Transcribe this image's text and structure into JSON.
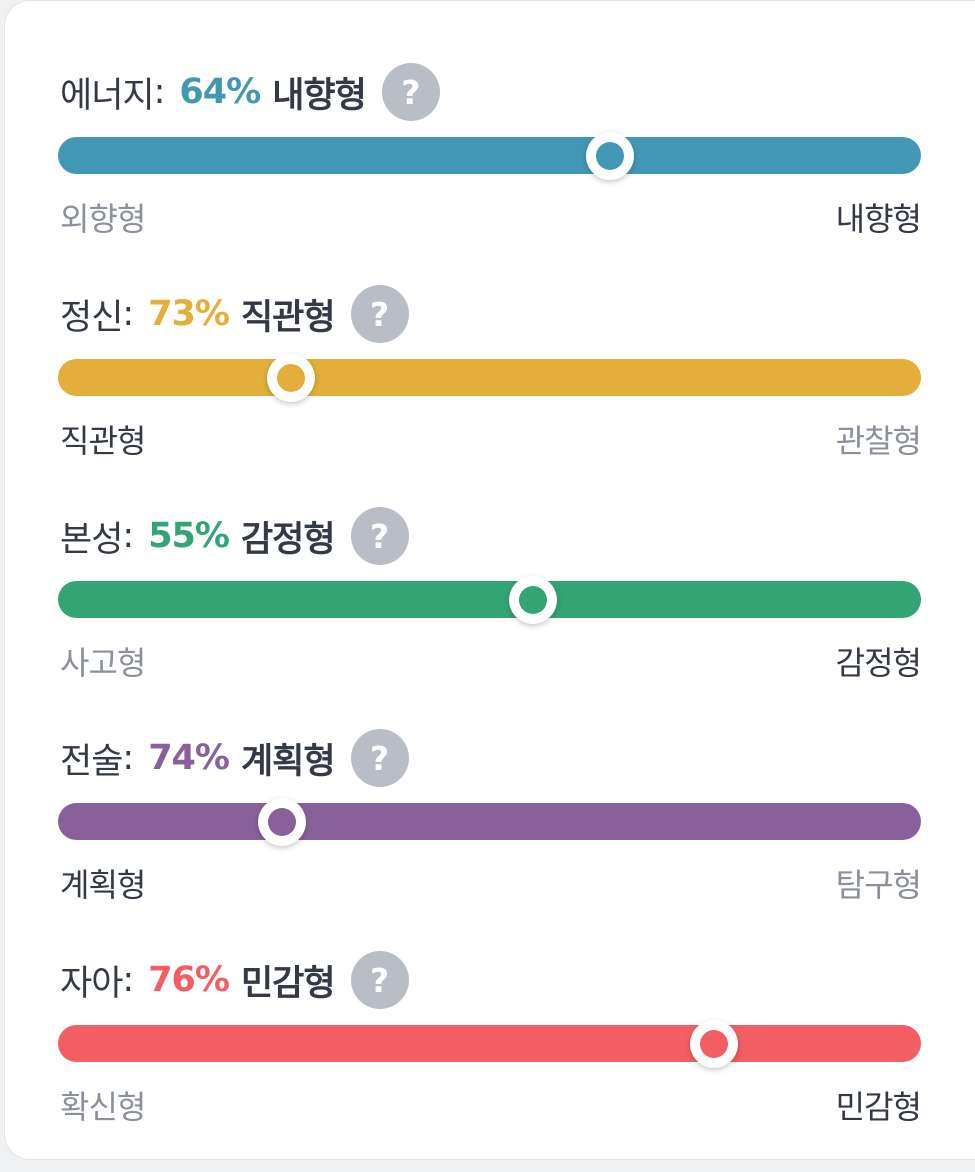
{
  "traits": [
    {
      "name": "에너지",
      "percent": "64%",
      "type": "내향형",
      "help": "?",
      "left_label": "외향형",
      "right_label": "내향형",
      "active_side": "right",
      "position": 0.64,
      "color": "#4298b4"
    },
    {
      "name": "정신",
      "percent": "73%",
      "type": "직관형",
      "help": "?",
      "left_label": "직관형",
      "right_label": "관찰형",
      "active_side": "left",
      "position": 0.27,
      "color": "#e4ae3a"
    },
    {
      "name": "본성",
      "percent": "55%",
      "type": "감정형",
      "help": "?",
      "left_label": "사고형",
      "right_label": "감정형",
      "active_side": "right",
      "position": 0.55,
      "color": "#33a474"
    },
    {
      "name": "전술",
      "percent": "74%",
      "type": "계획형",
      "help": "?",
      "left_label": "계획형",
      "right_label": "탐구형",
      "active_side": "left",
      "position": 0.26,
      "color": "#88619a"
    },
    {
      "name": "자아",
      "percent": "76%",
      "type": "민감형",
      "help": "?",
      "left_label": "확신형",
      "right_label": "민감형",
      "active_side": "right",
      "position": 0.76,
      "color": "#f25e62"
    }
  ]
}
